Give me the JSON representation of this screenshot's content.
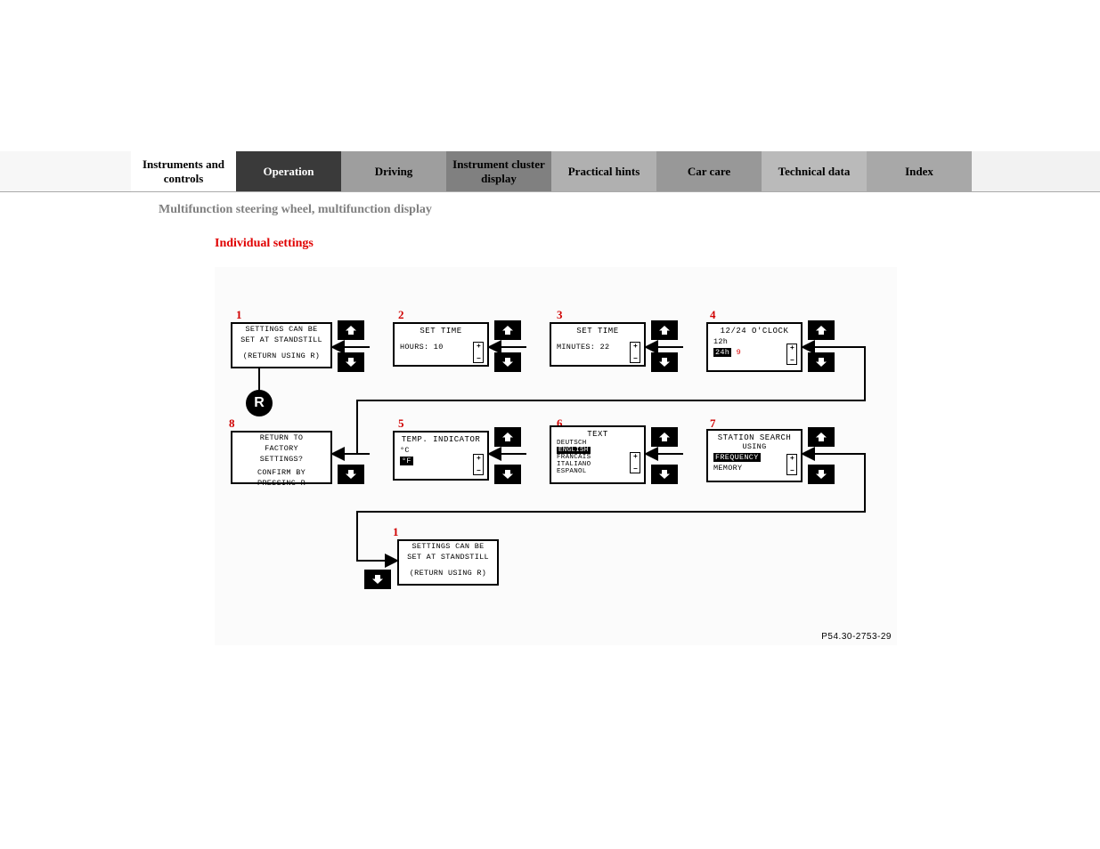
{
  "nav": {
    "tabs": [
      {
        "label": "Instruments and controls",
        "cls": "white"
      },
      {
        "label": "Operation",
        "cls": "dark"
      },
      {
        "label": "Driving",
        "cls": "g1"
      },
      {
        "label": "Instrument cluster display",
        "cls": "g2"
      },
      {
        "label": "Practical hints",
        "cls": "g3"
      },
      {
        "label": "Car care",
        "cls": "g4"
      },
      {
        "label": "Technical data",
        "cls": "g5"
      },
      {
        "label": "Index",
        "cls": "g6"
      }
    ]
  },
  "subtitle": "Multifunction steering wheel, multifunction display",
  "heading": "Individual settings",
  "diagram": {
    "part_no": "P54.30-2753-29",
    "r_badge": "R",
    "labels": {
      "n1": "1",
      "n2": "2",
      "n3": "3",
      "n4": "4",
      "n5": "5",
      "n6": "6",
      "n7": "7",
      "n8": "8",
      "n1b": "1"
    },
    "box1": {
      "l1": "SETTINGS CAN BE",
      "l2": "SET AT STANDSTILL",
      "l3": "(RETURN USING R)"
    },
    "box2": {
      "title": "SET TIME",
      "l1": "HOURS:  10"
    },
    "box3": {
      "title": "SET TIME",
      "l1": "MINUTES: 22"
    },
    "box4": {
      "title": "12/24 O'CLOCK",
      "l1": "12h",
      "l2_inv": "24h",
      "l2_after": " 9"
    },
    "box5": {
      "title": "TEMP. INDICATOR",
      "l1": "°C",
      "l2": "°F"
    },
    "box6": {
      "title": "TEXT",
      "opts": [
        "DEUTSCH",
        "ENGLISH",
        "FRANCAIS",
        "ITALIANO",
        "ESPANOL"
      ],
      "sel": 1
    },
    "box7": {
      "title": "STATION SEARCH",
      "sub": "USING",
      "l1_inv": "FREQUENCY",
      "l2": "MEMORY"
    },
    "box8": {
      "l1": "RETURN TO",
      "l2": "FACTORY",
      "l3": "SETTINGS?",
      "l4": "CONFIRM BY",
      "l5": "PRESSING R"
    },
    "box1b": {
      "l1": "SETTINGS CAN BE",
      "l2": "SET AT STANDSTILL",
      "l3": "(RETURN USING R)"
    }
  }
}
